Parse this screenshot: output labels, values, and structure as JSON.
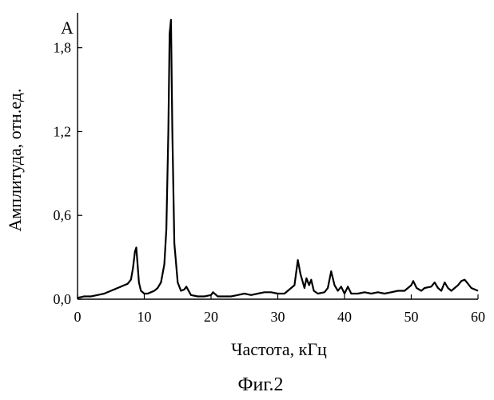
{
  "chart_data": {
    "type": "line",
    "panel_label": "A",
    "xlabel": "Частота, кГц",
    "ylabel": "Амплитуда, отн.ед.",
    "caption": "Фиг.2",
    "xlim": [
      0,
      60
    ],
    "ylim": [
      0,
      2.05
    ],
    "x_ticks": [
      0,
      10,
      20,
      30,
      40,
      50,
      60
    ],
    "x_tick_labels": [
      "0",
      "10",
      "20",
      "30",
      "40",
      "50",
      "60"
    ],
    "y_ticks": [
      0,
      0.6,
      1.2,
      1.8
    ],
    "y_tick_labels": [
      "0,0",
      "0,6",
      "1,2",
      "1,8"
    ],
    "grid": false,
    "series": [
      {
        "x": [
          0,
          1,
          2,
          3,
          4,
          5,
          5.5,
          6,
          6.5,
          7,
          7.5,
          8,
          8.3,
          8.6,
          8.8,
          9.0,
          9.2,
          9.5,
          10,
          10.5,
          11,
          11.5,
          12,
          12.5,
          13,
          13.3,
          13.6,
          13.8,
          14.0,
          14.2,
          14.5,
          15,
          15.5,
          16,
          16.3,
          17,
          18,
          19,
          20,
          20.3,
          21,
          22,
          23,
          24,
          25,
          26,
          27,
          28,
          29,
          30,
          31,
          32,
          32.5,
          33,
          33.4,
          34,
          34.3,
          34.7,
          35,
          35.4,
          36,
          37,
          37.5,
          38,
          38.5,
          39,
          39.5,
          40,
          40.5,
          41,
          42,
          43,
          44,
          45,
          46,
          47,
          48,
          49,
          50,
          50.3,
          50.8,
          51.5,
          52,
          53,
          53.5,
          54,
          54.5,
          55,
          55.5,
          56,
          57,
          57.5,
          58,
          58.5,
          59,
          59.5,
          60
        ],
        "y": [
          0.01,
          0.02,
          0.02,
          0.03,
          0.04,
          0.06,
          0.07,
          0.08,
          0.09,
          0.1,
          0.11,
          0.14,
          0.22,
          0.34,
          0.37,
          0.25,
          0.12,
          0.06,
          0.04,
          0.04,
          0.05,
          0.06,
          0.08,
          0.12,
          0.25,
          0.5,
          1.2,
          1.9,
          2.0,
          1.2,
          0.4,
          0.12,
          0.06,
          0.07,
          0.09,
          0.03,
          0.02,
          0.02,
          0.03,
          0.05,
          0.02,
          0.02,
          0.02,
          0.03,
          0.04,
          0.03,
          0.04,
          0.05,
          0.05,
          0.04,
          0.04,
          0.08,
          0.1,
          0.28,
          0.18,
          0.08,
          0.15,
          0.1,
          0.14,
          0.06,
          0.04,
          0.05,
          0.08,
          0.2,
          0.1,
          0.06,
          0.09,
          0.04,
          0.09,
          0.04,
          0.04,
          0.05,
          0.04,
          0.05,
          0.04,
          0.05,
          0.06,
          0.06,
          0.1,
          0.13,
          0.08,
          0.06,
          0.08,
          0.09,
          0.12,
          0.08,
          0.06,
          0.12,
          0.08,
          0.06,
          0.1,
          0.13,
          0.14,
          0.11,
          0.08,
          0.07,
          0.06
        ]
      }
    ]
  }
}
